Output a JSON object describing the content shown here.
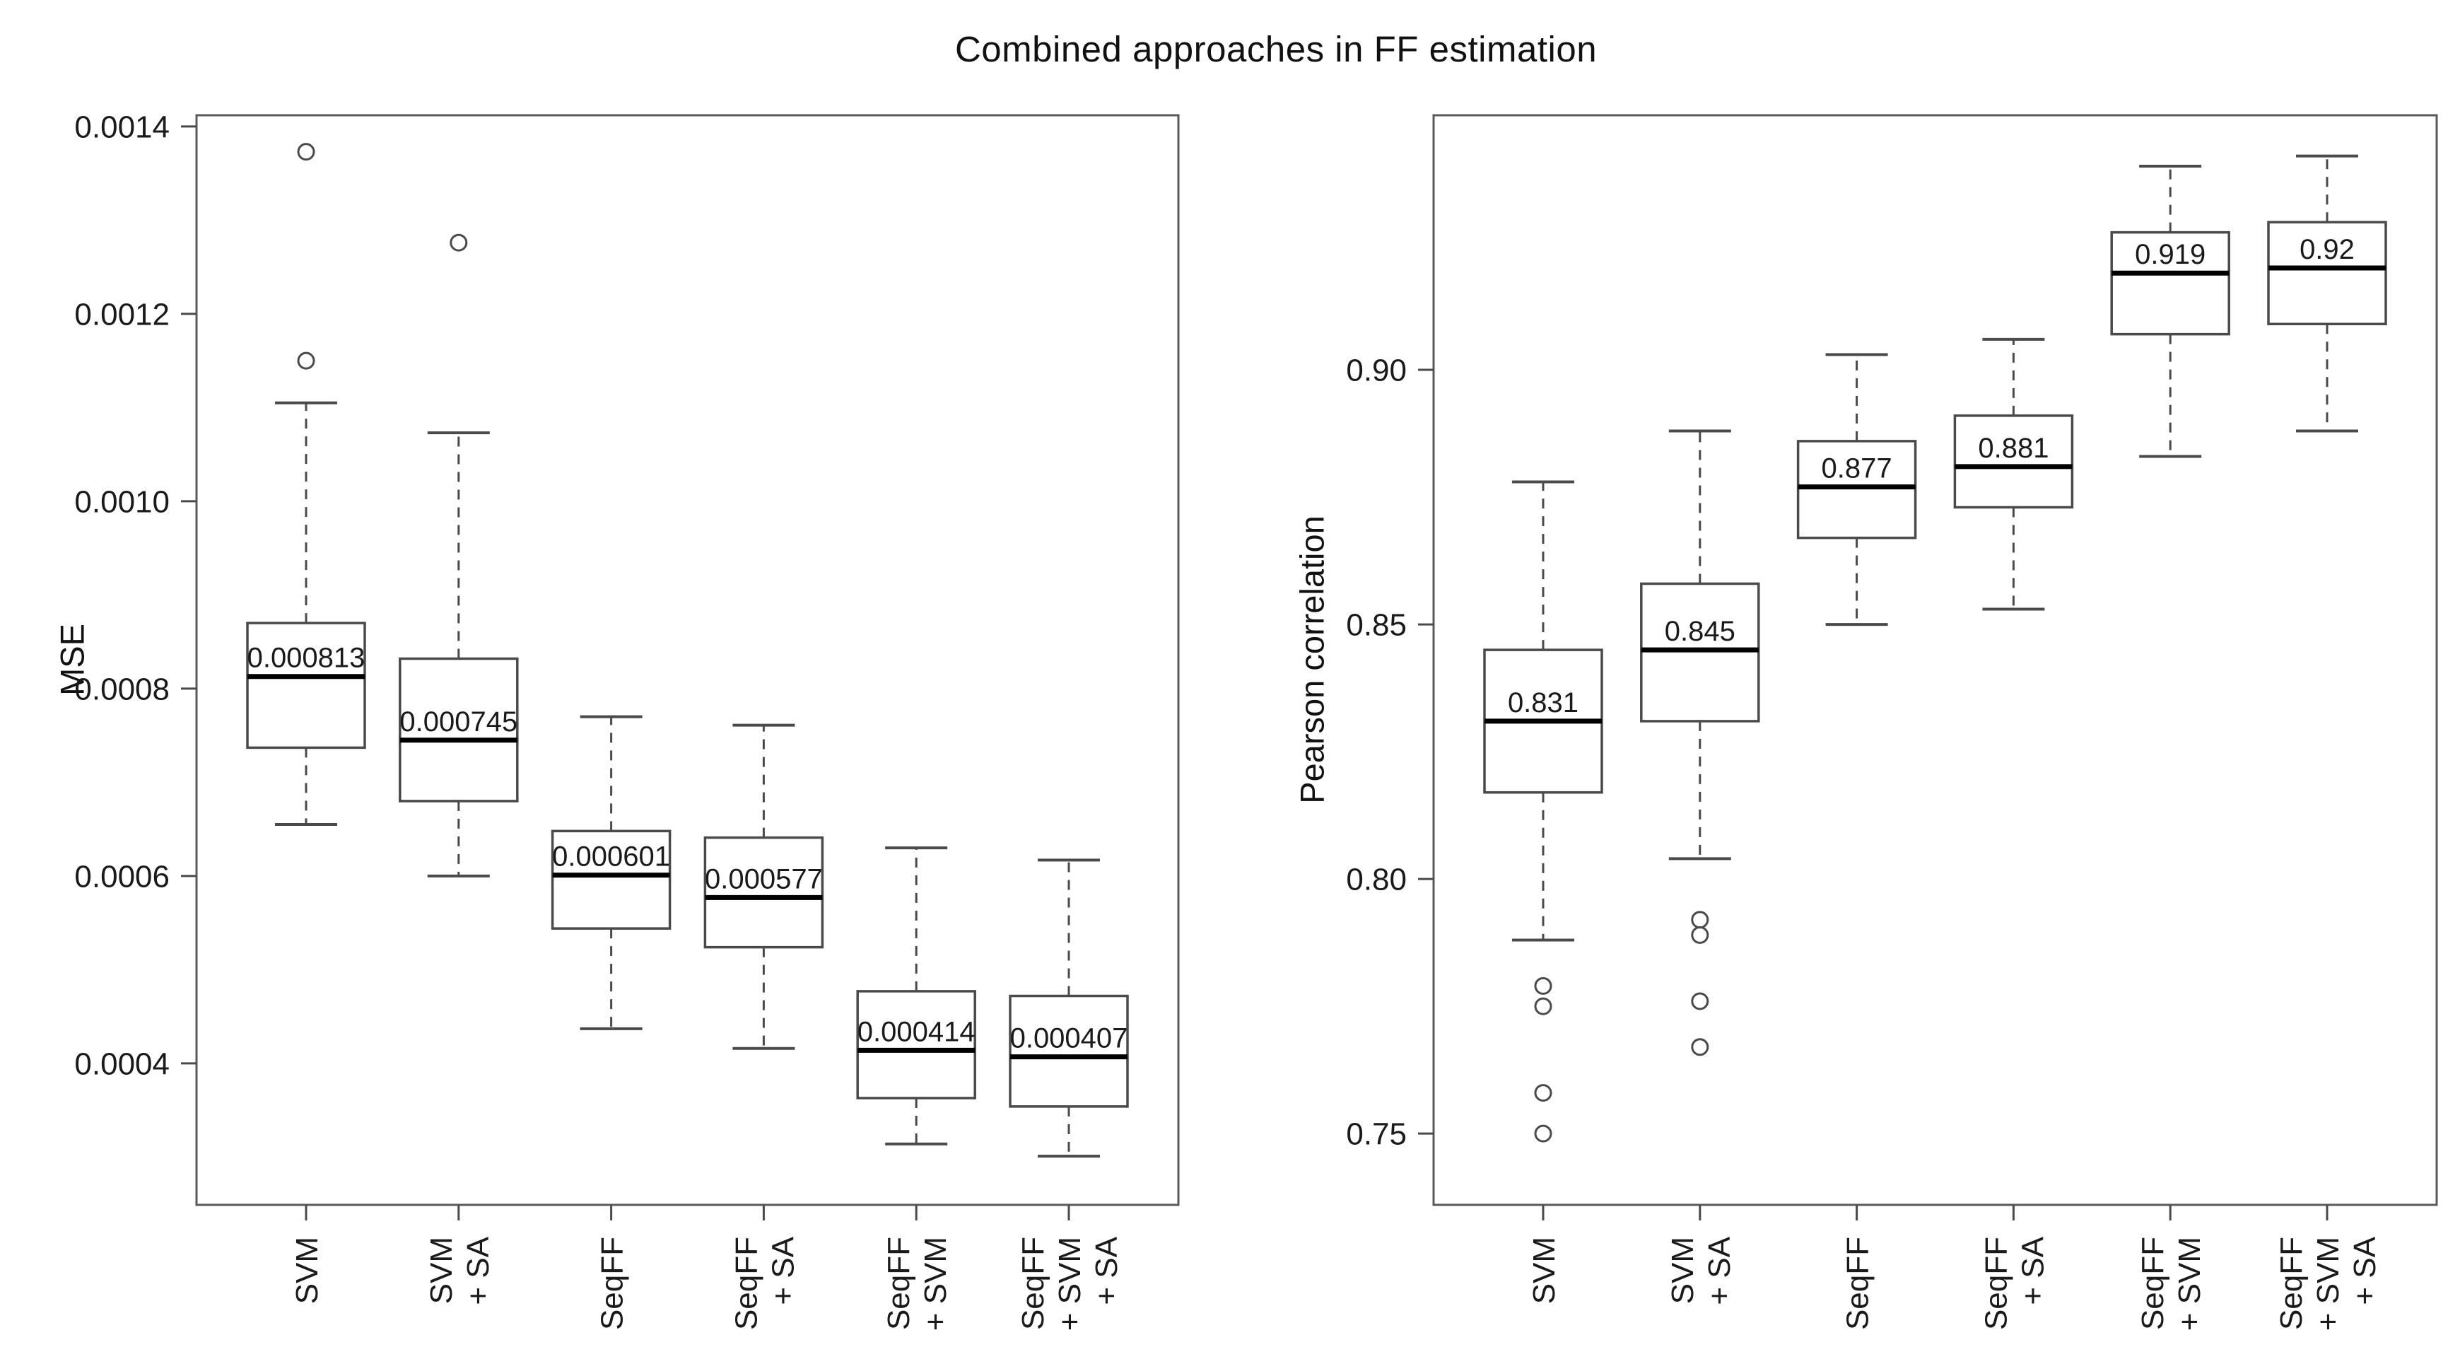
{
  "title": "Combined approaches in FF estimation",
  "styles": {
    "background": "#ffffff",
    "panel_border_color": "#5a5a5a",
    "box_stroke_color": "#4a4a4a",
    "median_color": "#000000",
    "whisker_color": "#4a4a4a",
    "text_color": "#1a1a1a",
    "box_fill": "#ffffff"
  },
  "chart_data": [
    {
      "type": "boxplot",
      "panel": "left",
      "title": "",
      "xlabel": "",
      "ylabel": "MSE",
      "grid": false,
      "ylim": [
        0.000249,
        0.001412
      ],
      "yticks": [
        0.0004,
        0.0006,
        0.0008,
        0.001,
        0.0012,
        0.0014
      ],
      "ytick_labels": [
        "0.0004",
        "0.0006",
        "0.0008",
        "0.0010",
        "0.0012",
        "0.0014"
      ],
      "categories": [
        "SVM",
        "SVM + SA",
        "SeqFF",
        "SeqFF + SA",
        "SeqFF + SVM",
        "SeqFF + SVM + SA"
      ],
      "category_label_lines": [
        [
          "SVM"
        ],
        [
          "SVM",
          "+ SA"
        ],
        [
          "SeqFF"
        ],
        [
          "SeqFF",
          "+ SA"
        ],
        [
          "SeqFF",
          "+ SVM"
        ],
        [
          "SeqFF",
          "+ SVM",
          "+ SA"
        ]
      ],
      "boxes": [
        {
          "category": "SVM",
          "whisker_low": 0.000655,
          "q1": 0.000737,
          "median": 0.000813,
          "q3": 0.00087,
          "whisker_high": 0.001105,
          "outliers": [
            0.00115,
            0.001373
          ],
          "median_label": "0.000813"
        },
        {
          "category": "SVM + SA",
          "whisker_low": 0.0006,
          "q1": 0.00068,
          "median": 0.000745,
          "q3": 0.000832,
          "whisker_high": 0.001073,
          "outliers": [
            0.001276
          ],
          "median_label": "0.000745"
        },
        {
          "category": "SeqFF",
          "whisker_low": 0.000437,
          "q1": 0.000544,
          "median": 0.000601,
          "q3": 0.000648,
          "whisker_high": 0.00077,
          "outliers": [],
          "median_label": "0.000601"
        },
        {
          "category": "SeqFF + SA",
          "whisker_low": 0.000416,
          "q1": 0.000524,
          "median": 0.000577,
          "q3": 0.000641,
          "whisker_high": 0.000761,
          "outliers": [],
          "median_label": "0.000577"
        },
        {
          "category": "SeqFF + SVM",
          "whisker_low": 0.000314,
          "q1": 0.000363,
          "median": 0.000414,
          "q3": 0.000477,
          "whisker_high": 0.00063,
          "outliers": [],
          "median_label": "0.000414"
        },
        {
          "category": "SeqFF + SVM + SA",
          "whisker_low": 0.000301,
          "q1": 0.000354,
          "median": 0.000407,
          "q3": 0.000472,
          "whisker_high": 0.000617,
          "outliers": [],
          "median_label": "0.000407"
        }
      ]
    },
    {
      "type": "boxplot",
      "panel": "right",
      "title": "",
      "xlabel": "",
      "ylabel": "Pearson correlation",
      "grid": false,
      "ylim": [
        0.736,
        0.95
      ],
      "yticks": [
        0.75,
        0.8,
        0.85,
        0.9
      ],
      "ytick_labels": [
        "0.75",
        "0.80",
        "0.85",
        "0.90"
      ],
      "categories": [
        "SVM",
        "SVM + SA",
        "SeqFF",
        "SeqFF + SA",
        "SeqFF + SVM",
        "SeqFF + SVM + SA"
      ],
      "category_label_lines": [
        [
          "SVM"
        ],
        [
          "SVM",
          "+ SA"
        ],
        [
          "SeqFF"
        ],
        [
          "SeqFF",
          "+ SA"
        ],
        [
          "SeqFF",
          "+ SVM"
        ],
        [
          "SeqFF",
          "+ SVM",
          "+ SA"
        ]
      ],
      "boxes": [
        {
          "category": "SVM",
          "whisker_low": 0.788,
          "q1": 0.817,
          "median": 0.831,
          "q3": 0.845,
          "whisker_high": 0.878,
          "outliers": [
            0.779,
            0.775,
            0.758,
            0.75
          ],
          "median_label": "0.831"
        },
        {
          "category": "SVM + SA",
          "whisker_low": 0.804,
          "q1": 0.831,
          "median": 0.845,
          "q3": 0.858,
          "whisker_high": 0.888,
          "outliers": [
            0.792,
            0.789,
            0.776,
            0.767
          ],
          "median_label": "0.845"
        },
        {
          "category": "SeqFF",
          "whisker_low": 0.85,
          "q1": 0.867,
          "median": 0.877,
          "q3": 0.886,
          "whisker_high": 0.903,
          "outliers": [],
          "median_label": "0.877"
        },
        {
          "category": "SeqFF + SA",
          "whisker_low": 0.853,
          "q1": 0.873,
          "median": 0.881,
          "q3": 0.891,
          "whisker_high": 0.906,
          "outliers": [],
          "median_label": "0.881"
        },
        {
          "category": "SeqFF + SVM",
          "whisker_low": 0.883,
          "q1": 0.907,
          "median": 0.919,
          "q3": 0.927,
          "whisker_high": 0.94,
          "outliers": [],
          "median_label": "0.919"
        },
        {
          "category": "SeqFF + SVM + SA",
          "whisker_low": 0.888,
          "q1": 0.909,
          "median": 0.92,
          "q3": 0.929,
          "whisker_high": 0.942,
          "outliers": [],
          "median_label": "0.92"
        }
      ]
    }
  ]
}
